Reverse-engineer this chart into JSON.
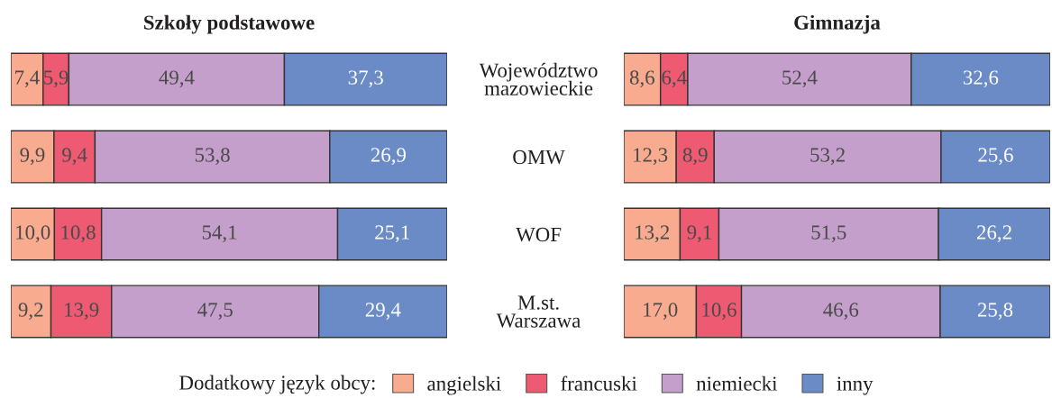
{
  "chart_data": [
    {
      "type": "bar",
      "orientation": "horizontal",
      "stacked": true,
      "title": "Szkoły podstawowe",
      "categories": [
        "Województwo\nmazowieckie",
        "OMW",
        "WOF",
        "M.st.\nWarszawa"
      ],
      "tick_labels": false,
      "legend": "bottom",
      "legend_title": "Dodatkowy język obcy:",
      "series": [
        {
          "name": "angielski",
          "color": "#f9ab8f",
          "values": [
            7.4,
            9.9,
            10.0,
            9.2
          ],
          "value_labels": [
            "7,4",
            "9,9",
            "10,0",
            "9,2"
          ]
        },
        {
          "name": "francuski",
          "color": "#ee5a72",
          "values": [
            5.9,
            9.4,
            10.8,
            13.9
          ],
          "value_labels": [
            "5,9",
            "9,4",
            "10,8",
            "13,9"
          ]
        },
        {
          "name": "niemiecki",
          "color": "#c59fcb",
          "values": [
            49.4,
            53.8,
            54.1,
            47.5
          ],
          "value_labels": [
            "49,4",
            "53,8",
            "54,1",
            "47,5"
          ]
        },
        {
          "name": "inny",
          "color": "#6b8bc6",
          "values": [
            37.3,
            26.9,
            25.1,
            29.4
          ],
          "value_labels": [
            "37,3",
            "26,9",
            "25,1",
            "29,4"
          ]
        }
      ]
    },
    {
      "type": "bar",
      "orientation": "horizontal",
      "stacked": true,
      "title": "Gimnazja",
      "categories": [
        "Województwo\nmazowieckie",
        "OMW",
        "WOF",
        "M.st.\nWarszawa"
      ],
      "tick_labels": "y",
      "series": [
        {
          "name": "angielski",
          "color": "#f9ab8f",
          "values": [
            8.6,
            12.3,
            13.2,
            17.0
          ],
          "value_labels": [
            "8,6",
            "12,3",
            "13,2",
            "17,0"
          ]
        },
        {
          "name": "francuski",
          "color": "#ee5a72",
          "values": [
            6.4,
            8.9,
            9.1,
            10.6
          ],
          "value_labels": [
            "6,4",
            "8,9",
            "9,1",
            "10,6"
          ]
        },
        {
          "name": "niemiecki",
          "color": "#c59fcb",
          "values": [
            52.4,
            53.2,
            51.5,
            46.6
          ],
          "value_labels": [
            "52,4",
            "53,2",
            "51,5",
            "46,6"
          ]
        },
        {
          "name": "inny",
          "color": "#6b8bc6",
          "values": [
            32.6,
            25.6,
            26.2,
            25.8
          ],
          "value_labels": [
            "32,6",
            "25,6",
            "26,2",
            "25,8"
          ]
        }
      ]
    }
  ]
}
